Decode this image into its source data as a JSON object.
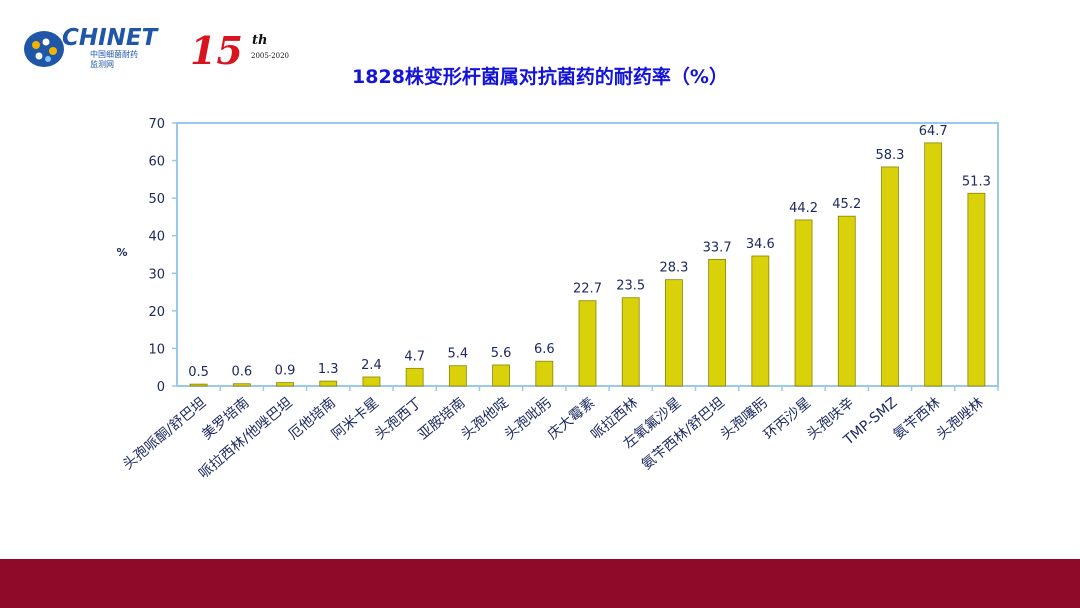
{
  "logo": {
    "brand": "CHINET",
    "subtitle_cn": "中国细菌耐药",
    "subtitle_cn2": "监测网",
    "anniv_number": "15",
    "anniv_suffix": "th",
    "anniv_years": "2005-2020"
  },
  "colors": {
    "bar_fill": "#d9d20a",
    "bar_stroke": "#8a8400",
    "axis": "#9cc9ea",
    "title": "#1414d8",
    "footer": "#8f0a28"
  },
  "chart_data": {
    "type": "bar",
    "title": "1828株变形杆菌属对抗菌药的耐药率（%）",
    "xlabel": "",
    "ylabel": "%",
    "ylim": [
      0,
      70
    ],
    "yticks": [
      0,
      10,
      20,
      30,
      40,
      50,
      60,
      70
    ],
    "grid": false,
    "categories": [
      "头孢哌酮/舒巴坦",
      "美罗培南",
      "哌拉西林/他唑巴坦",
      "厄他培南",
      "阿米卡星",
      "头孢西丁",
      "亚胺培南",
      "头孢他啶",
      "头孢吡肟",
      "庆大霉素",
      "哌拉西林",
      "左氧氟沙星",
      "氨苄西林/舒巴坦",
      "头孢噻肟",
      "环丙沙星",
      "头孢呋辛",
      "TMP-SMZ",
      "氨苄西林",
      "头孢唑林"
    ],
    "values": [
      0.5,
      0.6,
      0.9,
      1.3,
      2.4,
      4.7,
      5.4,
      5.6,
      6.6,
      22.7,
      23.5,
      28.3,
      33.7,
      34.6,
      44.2,
      45.2,
      58.3,
      64.7,
      51.3
    ]
  }
}
